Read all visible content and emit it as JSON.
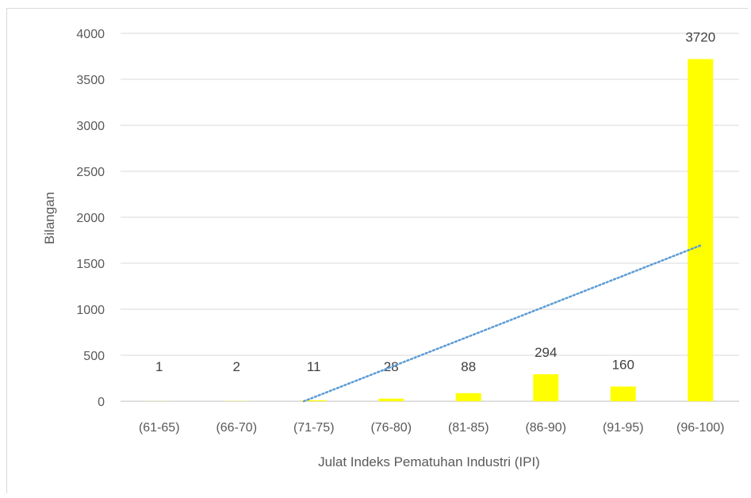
{
  "chart_data": {
    "type": "bar",
    "title": "",
    "xlabel": "Julat Indeks Pematuhan Industri (IPI)",
    "ylabel": "Bilangan",
    "categories": [
      "(61-65)",
      "(66-70)",
      "(71-75)",
      "(76-80)",
      "(81-85)",
      "(86-90)",
      "(91-95)",
      "(96-100)"
    ],
    "series": [
      {
        "values": [
          1,
          2,
          11,
          28,
          88,
          294,
          160,
          3720
        ],
        "color": "#ffff00"
      }
    ],
    "data_labels": [
      "1",
      "2",
      "11",
      "28",
      "88",
      "294",
      "160",
      "3720"
    ],
    "yticks": [
      "0",
      "500",
      "1000",
      "1500",
      "2000",
      "2500",
      "3000",
      "3500",
      "4000"
    ],
    "ylim": [
      0,
      4000
    ],
    "grid": true,
    "legend": "none",
    "trendline": {
      "type": "linear",
      "style": "dotted",
      "color": "#5b9bd5"
    }
  }
}
